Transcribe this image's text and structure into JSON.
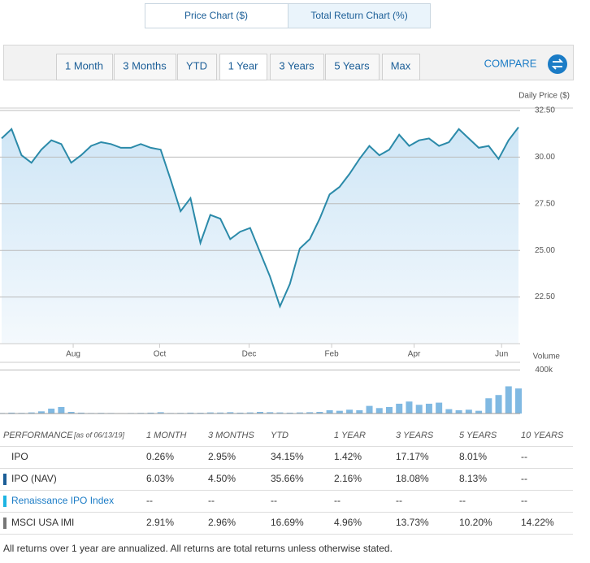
{
  "tabs": [
    "Price Chart ($)",
    "Total Return Chart (%)"
  ],
  "range_buttons": [
    "1 Month",
    "3 Months",
    "YTD",
    "1 Year",
    "3 Years",
    "5 Years",
    "Max"
  ],
  "compare": "COMPARE",
  "chart_data": [
    {
      "type": "line",
      "y_label": "Daily Price ($)",
      "color": "#2b8aa9",
      "values": [
        31.0,
        31.5,
        30.1,
        29.7,
        30.4,
        30.9,
        30.7,
        29.7,
        30.1,
        30.6,
        30.8,
        30.7,
        30.5,
        30.5,
        30.7,
        30.5,
        30.4,
        28.8,
        27.1,
        27.8,
        25.4,
        26.9,
        26.7,
        25.6,
        26.0,
        26.2,
        24.9,
        23.6,
        22.0,
        23.2,
        25.1,
        25.6,
        26.7,
        28.0,
        28.4,
        29.1,
        29.9,
        30.6,
        30.1,
        30.4,
        31.2,
        30.6,
        30.9,
        31.0,
        30.6,
        30.8,
        31.5,
        31.0,
        30.5,
        30.6,
        29.9,
        30.9,
        31.6
      ],
      "xlim": [
        0,
        52
      ],
      "xticks": [
        {
          "value": 7.2,
          "label": "Aug"
        },
        {
          "value": 15.9,
          "label": "Oct"
        },
        {
          "value": 24.9,
          "label": "Dec"
        },
        {
          "value": 33.2,
          "label": "Feb"
        },
        {
          "value": 41.5,
          "label": "Apr"
        },
        {
          "value": 50.3,
          "label": "Jun"
        }
      ],
      "ylim": [
        20,
        33
      ],
      "yticks": [
        {
          "value": 22.5,
          "label": "22.50"
        },
        {
          "value": 25,
          "label": "25.00"
        },
        {
          "value": 27.5,
          "label": "27.50"
        },
        {
          "value": 30,
          "label": "30.00"
        },
        {
          "value": 32.5,
          "label": "32.50"
        }
      ],
      "grid": true
    },
    {
      "type": "bar",
      "y_label": "Volume",
      "color": "#80b9e2",
      "values": [
        5000,
        8000,
        6000,
        10000,
        20000,
        45000,
        60000,
        15000,
        8000,
        5000,
        6000,
        5000,
        4000,
        5000,
        6000,
        8000,
        12000,
        5000,
        6000,
        8000,
        7000,
        10000,
        9000,
        12000,
        8000,
        10000,
        15000,
        12000,
        10000,
        8000,
        10000,
        12000,
        15000,
        30000,
        25000,
        35000,
        30000,
        70000,
        50000,
        60000,
        90000,
        110000,
        80000,
        90000,
        100000,
        40000,
        30000,
        35000,
        25000,
        140000,
        170000,
        250000,
        230000
      ],
      "xlim": [
        0,
        52
      ],
      "ylim": [
        0,
        470000
      ],
      "yticks": [
        {
          "value": 400000,
          "label": "400k"
        }
      ],
      "grid": true
    }
  ],
  "table": {
    "header": {
      "label": "PERFORMANCE",
      "as_of": "[as of 06/13/19]",
      "columns": [
        "1 MONTH",
        "3 MONTHS",
        "YTD",
        "1 YEAR",
        "3 YEARS",
        "5 YEARS",
        "10 YEARS"
      ]
    },
    "rows": [
      {
        "name": "IPO",
        "cells": [
          "0.26%",
          "2.95%",
          "34.15%",
          "1.42%",
          "17.17%",
          "8.01%",
          "--"
        ]
      },
      {
        "name": "IPO (NAV)",
        "color": "#1b5e97",
        "cells": [
          "6.03%",
          "4.50%",
          "35.66%",
          "2.16%",
          "18.08%",
          "8.13%",
          "--"
        ]
      },
      {
        "name": "Renaissance IPO Index",
        "color": "#1db4e3",
        "cells": [
          "--",
          "--",
          "--",
          "--",
          "--",
          "--",
          "--"
        ]
      },
      {
        "name": "MSCI USA IMI",
        "color": "#777777",
        "cells": [
          "2.91%",
          "2.96%",
          "16.69%",
          "4.96%",
          "13.73%",
          "10.20%",
          "14.22%"
        ]
      }
    ]
  },
  "footer": "All returns over 1 year are annualized. All returns are total returns unless otherwise stated."
}
